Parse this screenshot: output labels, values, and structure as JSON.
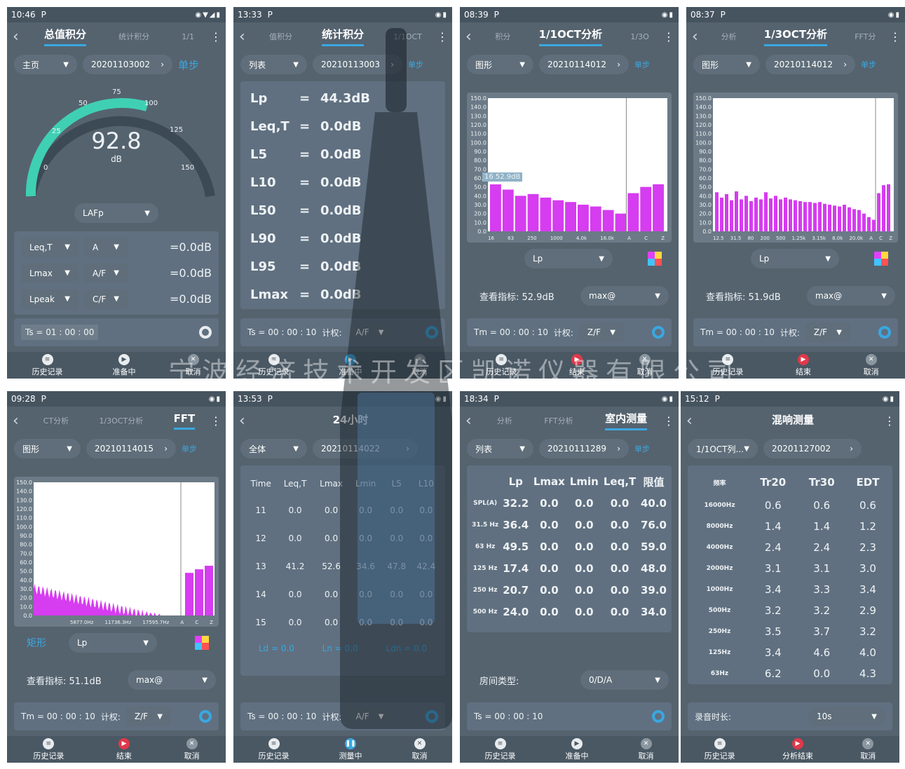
{
  "watermark": "宁波经济技术开发区凯诺仪器有限公司",
  "p1": {
    "time": "10:46",
    "tabs": [
      "总值积分",
      "统计积分",
      "1/1"
    ],
    "mode": "主页",
    "file": "20201103002",
    "step": "单步",
    "value": "92.8",
    "unit": "dB",
    "ticks": [
      "0",
      "25",
      "50",
      "75",
      "100",
      "125",
      "150"
    ],
    "weight": "LAFp",
    "rows": [
      {
        "a": "Leq,T",
        "b": "A",
        "v": "=0.0dB"
      },
      {
        "a": "Lmax",
        "b": "A/F",
        "v": "=0.0dB"
      },
      {
        "a": "Lpeak",
        "b": "C/F",
        "v": "=0.0dB"
      }
    ],
    "ts": "Ts = 01 : 00 : 00",
    "nav": [
      "历史记录",
      "准备中",
      "取消"
    ]
  },
  "p2": {
    "time": "13:33",
    "tabs": [
      "值积分",
      "统计积分",
      "1/1OCT"
    ],
    "mode": "列表",
    "file": "20210113003",
    "step": "单步",
    "rows": [
      {
        "k": "Lp",
        "e": "=",
        "v": "44.3dB"
      },
      {
        "k": "Leq,T",
        "e": "=",
        "v": "0.0dB"
      },
      {
        "k": "L5",
        "e": "=",
        "v": "0.0dB"
      },
      {
        "k": "L10",
        "e": "=",
        "v": "0.0dB"
      },
      {
        "k": "L50",
        "e": "=",
        "v": "0.0dB"
      },
      {
        "k": "L90",
        "e": "=",
        "v": "0.0dB"
      },
      {
        "k": "L95",
        "e": "=",
        "v": "0.0dB"
      },
      {
        "k": "Lmax",
        "e": "=",
        "v": "0.0dB"
      }
    ],
    "ts": "Ts =  00 : 00 : 10",
    "wlabel": "计权:",
    "w": "A/F",
    "nav": [
      "历史记录",
      "准备中",
      "取消"
    ]
  },
  "p3": {
    "time": "08:39",
    "tabs": [
      "积分",
      "1/1OCT分析",
      "1/3O"
    ],
    "mode": "图形",
    "file": "20210114012",
    "step": "单步",
    "tip": "16  52.9dB",
    "xt": [
      "16",
      "63",
      "250",
      "1000",
      "4.0k",
      "16.0k",
      "A",
      "C",
      "Z"
    ],
    "ind": "Lp",
    "view": "查看指标: 52.9dB",
    "max": "max@",
    "tm": "Tm =  00 : 00 : 10",
    "wlabel": "计权:",
    "w": "Z/F",
    "nav": [
      "历史记录",
      "结束",
      "取消"
    ]
  },
  "p4": {
    "time": "08:37",
    "tabs": [
      "分析",
      "1/3OCT分析",
      "FFT分"
    ],
    "mode": "图形",
    "file": "20210114012",
    "step": "单步",
    "xt": [
      "12.5",
      "31.5",
      "80",
      "200",
      "500",
      "1.25k",
      "3.15k",
      "8.0k",
      "20.0k",
      "A",
      "C",
      "Z"
    ],
    "ind": "Lp",
    "view": "查看指标: 51.9dB",
    "max": "max@",
    "tm": "Tm =  00 : 00 : 10",
    "wlabel": "计权:",
    "w": "Z/F",
    "nav": [
      "历史记录",
      "结束",
      "取消"
    ]
  },
  "p5": {
    "time": "09:28",
    "tabs": [
      "CT分析",
      "1/3OCT分析",
      "FFT"
    ],
    "mode": "图形",
    "file": "20210114015",
    "step": "单步",
    "xt": [
      "5877.0Hz",
      "11736.3Hz",
      "17595.7Hz",
      "A",
      "C",
      "Z"
    ],
    "rect": "矩形",
    "ind": "Lp",
    "view": "查看指标: 51.1dB",
    "max": "max@",
    "tm": "Tm =  00 : 00 : 10",
    "wlabel": "计权:",
    "w": "Z/F",
    "nav": [
      "历史记录",
      "结束",
      "取消"
    ]
  },
  "p6": {
    "time": "13:53",
    "title": "24小时",
    "mode": "全体",
    "file": "20210114022",
    "head": [
      "Time",
      "Leq,T",
      "Lmax",
      "Lmin",
      "L5",
      "L10"
    ],
    "rows": [
      [
        "11",
        "0.0",
        "0.0",
        "0.0",
        "0.0",
        "0.0"
      ],
      [
        "12",
        "0.0",
        "0.0",
        "0.0",
        "0.0",
        "0.0"
      ],
      [
        "13",
        "41.2",
        "52.6",
        "34.6",
        "47.8",
        "42.4"
      ],
      [
        "14",
        "0.0",
        "0.0",
        "0.0",
        "0.0",
        "0.0"
      ],
      [
        "15",
        "0.0",
        "0.0",
        "0.0",
        "0.0",
        "0.0"
      ]
    ],
    "ld": "Ld = 0.0",
    "ln": "Ln = 0.0",
    "ldn": "Ldn = 0.0",
    "ts": "Ts =  00 : 00 : 10",
    "wlabel": "计权:",
    "w": "A/F",
    "nav": [
      "历史记录",
      "测量中",
      "取消"
    ]
  },
  "p7": {
    "time": "18:34",
    "tabs": [
      "分析",
      "FFT分析",
      "室内测量"
    ],
    "mode": "列表",
    "file": "20210111289",
    "step": "单步",
    "head": [
      "",
      "Lp",
      "Lmax",
      "Lmin",
      "Leq,T",
      "限值"
    ],
    "rows": [
      [
        "SPL(A)",
        "32.2",
        "0.0",
        "0.0",
        "0.0",
        "40.0"
      ],
      [
        "31.5 Hz",
        "36.4",
        "0.0",
        "0.0",
        "0.0",
        "76.0"
      ],
      [
        "63 Hz",
        "49.5",
        "0.0",
        "0.0",
        "0.0",
        "59.0"
      ],
      [
        "125 Hz",
        "17.4",
        "0.0",
        "0.0",
        "0.0",
        "48.0"
      ],
      [
        "250 Hz",
        "20.7",
        "0.0",
        "0.0",
        "0.0",
        "39.0"
      ],
      [
        "500 Hz",
        "24.0",
        "0.0",
        "0.0",
        "0.0",
        "34.0"
      ]
    ],
    "room": "房间类型:",
    "roomv": "0/D/A",
    "ts": "Ts =  00 : 00 : 10",
    "nav": [
      "历史记录",
      "准备中",
      "取消"
    ]
  },
  "p8": {
    "time": "15:12",
    "title": "混响测量",
    "mode": "1/1OCT列...",
    "file": "20201127002",
    "head": [
      "频率",
      "Tr20",
      "Tr30",
      "EDT"
    ],
    "rows": [
      [
        "16000Hz",
        "0.6",
        "0.6",
        "0.6"
      ],
      [
        "8000Hz",
        "1.4",
        "1.4",
        "1.2"
      ],
      [
        "4000Hz",
        "2.4",
        "2.4",
        "2.3"
      ],
      [
        "2000Hz",
        "3.1",
        "3.1",
        "3.0"
      ],
      [
        "1000Hz",
        "3.4",
        "3.3",
        "3.4"
      ],
      [
        "500Hz",
        "3.2",
        "3.2",
        "2.9"
      ],
      [
        "250Hz",
        "3.5",
        "3.7",
        "3.2"
      ],
      [
        "125Hz",
        "3.4",
        "4.6",
        "4.0"
      ],
      [
        "63Hz",
        "6.2",
        "0.0",
        "4.3"
      ]
    ],
    "rec": "录音时长:",
    "recv": "10s",
    "nav": [
      "历史记录",
      "分析结束",
      "取消"
    ]
  },
  "chart_data": [
    {
      "type": "bar",
      "panel": "1/1OCT分析",
      "categories": [
        "16",
        "31.5",
        "63",
        "125",
        "250",
        "500",
        "1000",
        "2000",
        "4.0k",
        "8.0k",
        "16.0k",
        "A",
        "C",
        "Z"
      ],
      "values": [
        52.9,
        47,
        40,
        42,
        38,
        35,
        33,
        30,
        28,
        24,
        20,
        43,
        50,
        53
      ],
      "ylim": [
        0,
        150
      ]
    },
    {
      "type": "bar",
      "panel": "1/3OCT分析",
      "categories": [
        "12.5",
        "16",
        "20",
        "25",
        "31.5",
        "40",
        "50",
        "63",
        "80",
        "100",
        "125",
        "160",
        "200",
        "250",
        "315",
        "400",
        "500",
        "630",
        "800",
        "1k",
        "1.25k",
        "1.6k",
        "2k",
        "2.5k",
        "3.15k",
        "4k",
        "5k",
        "6.3k",
        "8k",
        "10k",
        "12.5k",
        "16k",
        "20k",
        "A",
        "C",
        "Z"
      ],
      "values": [
        44,
        38,
        42,
        35,
        45,
        36,
        40,
        34,
        38,
        36,
        44,
        37,
        40,
        36,
        38,
        36,
        35,
        34,
        33,
        33,
        32,
        33,
        31,
        30,
        29,
        28,
        30,
        27,
        25,
        24,
        20,
        16,
        13,
        43,
        52,
        53
      ],
      "ylim": [
        0,
        150
      ]
    },
    {
      "type": "bar",
      "panel": "FFT",
      "categories": [
        "A",
        "C",
        "Z"
      ],
      "values": [
        48,
        52,
        56
      ],
      "ylim": [
        0,
        150
      ]
    }
  ]
}
